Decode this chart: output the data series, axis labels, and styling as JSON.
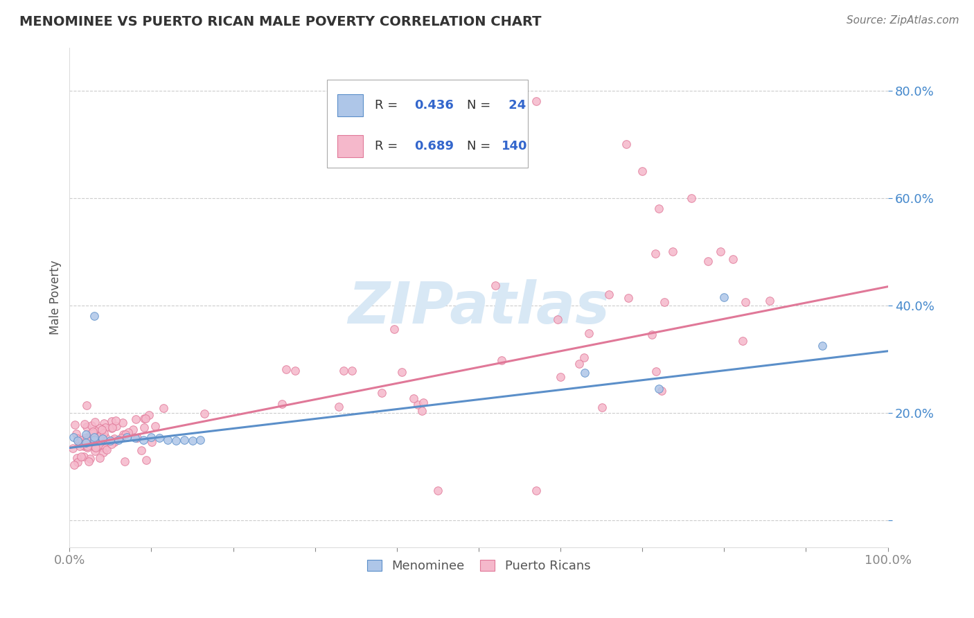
{
  "title": "MENOMINEE VS PUERTO RICAN MALE POVERTY CORRELATION CHART",
  "source": "Source: ZipAtlas.com",
  "ylabel": "Male Poverty",
  "xlim": [
    0.0,
    1.0
  ],
  "ylim": [
    -0.05,
    0.88
  ],
  "menominee_color": "#aec6e8",
  "menominee_edge": "#5b8fc9",
  "puertoRican_color": "#f5b8cb",
  "puertoRican_edge": "#e07898",
  "line_menominee": "#5b8fc9",
  "line_puertoRican": "#e07898",
  "watermark_color": "#d8e8f5",
  "background_color": "#ffffff",
  "grid_color": "#cccccc",
  "legend_text_color": "#3366cc",
  "title_color": "#333333",
  "ytick_color": "#4488cc",
  "xtick_color": "#555555",
  "ylabel_color": "#555555",
  "source_color": "#777777",
  "r_men": 0.436,
  "n_men": 24,
  "r_pr": 0.689,
  "n_pr": 140,
  "seed": 17
}
